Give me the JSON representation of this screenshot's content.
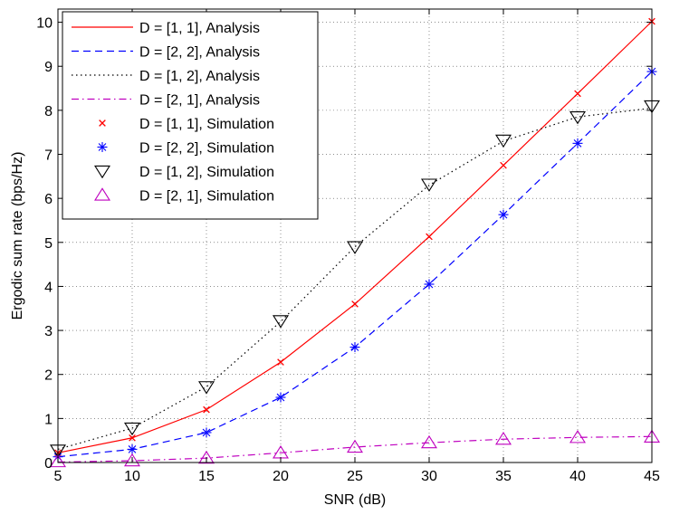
{
  "chart_data": {
    "type": "line",
    "title": "",
    "xlabel": "SNR (dB)",
    "ylabel": "Ergodic sum rate (bps/Hz)",
    "xlim": [
      5,
      45
    ],
    "ylim": [
      0,
      10.3
    ],
    "xticks": [
      5,
      10,
      15,
      20,
      25,
      30,
      35,
      40,
      45
    ],
    "yticks": [
      0,
      1,
      2,
      3,
      4,
      5,
      6,
      7,
      8,
      9,
      10
    ],
    "grid": true,
    "legend_position": "top-left",
    "x": [
      5,
      10,
      15,
      20,
      25,
      30,
      35,
      40,
      45
    ],
    "series": [
      {
        "name": "D = [1, 1], Analysis",
        "kind": "line",
        "color": "#ff0000",
        "dash": "solid",
        "values": [
          0.22,
          0.56,
          1.2,
          2.28,
          3.6,
          5.13,
          6.75,
          8.38,
          10.02
        ]
      },
      {
        "name": "D = [2, 2], Analysis",
        "kind": "line",
        "color": "#0000ff",
        "dash": "dashed",
        "values": [
          0.13,
          0.3,
          0.68,
          1.48,
          2.62,
          4.05,
          5.63,
          7.25,
          8.88
        ]
      },
      {
        "name": "D = [1, 2], Analysis",
        "kind": "line",
        "color": "#000000",
        "dash": "dotted",
        "values": [
          0.3,
          0.78,
          1.72,
          3.2,
          4.9,
          6.3,
          7.3,
          7.85,
          8.05
        ]
      },
      {
        "name": "D = [2, 1], Analysis",
        "kind": "line",
        "color": "#bf00bf",
        "dash": "dashdot",
        "values": [
          0.01,
          0.04,
          0.1,
          0.22,
          0.35,
          0.45,
          0.53,
          0.57,
          0.59
        ]
      },
      {
        "name": "D = [1, 1], Simulation",
        "kind": "marker",
        "marker": "x",
        "color": "#ff0000",
        "values": [
          0.22,
          0.56,
          1.2,
          2.28,
          3.6,
          5.13,
          6.75,
          8.38,
          10.02
        ]
      },
      {
        "name": "D = [2, 2], Simulation",
        "kind": "marker",
        "marker": "star",
        "color": "#0000ff",
        "values": [
          0.13,
          0.3,
          0.68,
          1.48,
          2.62,
          4.05,
          5.63,
          7.25,
          8.88
        ]
      },
      {
        "name": "D = [1, 2], Simulation",
        "kind": "marker",
        "marker": "triangle-down",
        "color": "#000000",
        "values": [
          0.28,
          0.78,
          1.72,
          3.22,
          4.9,
          6.32,
          7.32,
          7.85,
          8.1
        ]
      },
      {
        "name": "D = [2, 1], Simulation",
        "kind": "marker",
        "marker": "triangle-up",
        "color": "#bf00bf",
        "values": [
          0.02,
          0.04,
          0.1,
          0.22,
          0.35,
          0.45,
          0.53,
          0.57,
          0.58
        ]
      }
    ]
  }
}
